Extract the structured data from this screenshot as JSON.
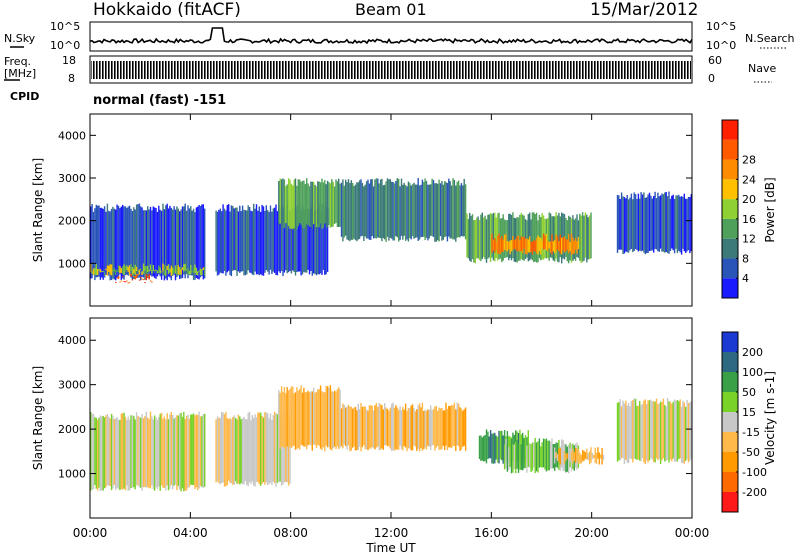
{
  "header": {
    "station": "Hokkaido (fitACF)",
    "beam": "Beam 01",
    "date": "15/Mar/2012"
  },
  "side_labels": {
    "nsky": "N.Sky",
    "nsearch": "N.Search",
    "freq_line1": "Freq.",
    "freq_line2": "[MHz]",
    "nave": "Nave",
    "cpid": "CPID",
    "cpid_value": "normal (fast) -151"
  },
  "noise_panel": {
    "left_ticks": [
      "10^5",
      "10^0"
    ],
    "right_ticks": [
      "10^5",
      "10^0"
    ]
  },
  "freq_panel": {
    "left_ticks": [
      "18",
      "8"
    ],
    "right_ticks": [
      "60",
      "0"
    ]
  },
  "x_axis": {
    "label": "Time UT",
    "ticks": [
      "00:00",
      "04:00",
      "08:00",
      "12:00",
      "16:00",
      "20:00",
      "00:00"
    ]
  },
  "colors": {
    "power": [
      "#1a1aff",
      "#2a55b8",
      "#3c7a7a",
      "#4fa05a",
      "#8fd032",
      "#ffc000",
      "#ff8c00",
      "#ff5a00",
      "#ff2000"
    ],
    "velocity": [
      "#ff1a1a",
      "#ff6a00",
      "#ff9a00",
      "#ffb84a",
      "#c8c8c8",
      "#78d228",
      "#3aa048",
      "#2d6a82",
      "#1a3ad2"
    ]
  },
  "chart_data": [
    {
      "type": "heatmap",
      "name": "power",
      "ylabel": "Slant Range [km]",
      "yticks": [
        "1000",
        "2000",
        "3000",
        "4000"
      ],
      "ylim": [
        0,
        4500
      ],
      "xlim_hours": [
        0,
        24
      ],
      "colorbar_label": "Power [dB]",
      "colorbar_ticks": [
        "4",
        "8",
        "12",
        "16",
        "20",
        "24",
        "28"
      ],
      "colorbar_range": [
        0,
        30
      ],
      "regions": [
        {
          "t": [
            0,
            4.6
          ],
          "r": [
            600,
            2400
          ],
          "v": 6
        },
        {
          "t": [
            0,
            4.6
          ],
          "r": [
            700,
            1000
          ],
          "v": 16
        },
        {
          "t": [
            1,
            2.5
          ],
          "r": [
            600,
            750
          ],
          "v": 24
        },
        {
          "t": [
            5,
            9.5
          ],
          "r": [
            700,
            2400
          ],
          "v": 6
        },
        {
          "t": [
            7.5,
            10
          ],
          "r": [
            1800,
            3000
          ],
          "v": 10
        },
        {
          "t": [
            10,
            15
          ],
          "r": [
            1500,
            3000
          ],
          "v": 7
        },
        {
          "t": [
            15,
            20
          ],
          "r": [
            1000,
            2200
          ],
          "v": 10
        },
        {
          "t": [
            16,
            19.5
          ],
          "r": [
            1200,
            1700
          ],
          "v": 20
        },
        {
          "t": [
            21,
            24
          ],
          "r": [
            1200,
            2700
          ],
          "v": 6
        }
      ]
    },
    {
      "type": "heatmap",
      "name": "velocity",
      "ylabel": "Slant Range [km]",
      "yticks": [
        "1000",
        "2000",
        "3000",
        "4000"
      ],
      "ylim": [
        0,
        4500
      ],
      "xlim_hours": [
        0,
        24
      ],
      "colorbar_label": "Velocity [m s-1]",
      "colorbar_ticks": [
        "-200",
        "-100",
        "-50",
        "-15",
        "15",
        "50",
        "100",
        "200"
      ],
      "colorbar_range": [
        -250,
        250
      ],
      "regions": [
        {
          "t": [
            0,
            4.6
          ],
          "r": [
            600,
            2400
          ],
          "v": -10
        },
        {
          "t": [
            5,
            8
          ],
          "r": [
            700,
            2400
          ],
          "v": -20
        },
        {
          "t": [
            7.5,
            10
          ],
          "r": [
            1500,
            3000
          ],
          "v": -55
        },
        {
          "t": [
            10,
            15
          ],
          "r": [
            1500,
            2600
          ],
          "v": -30
        },
        {
          "t": [
            15.5,
            17.5
          ],
          "r": [
            1200,
            2000
          ],
          "v": 120
        },
        {
          "t": [
            16.5,
            19.5
          ],
          "r": [
            1000,
            1800
          ],
          "v": 40
        },
        {
          "t": [
            18.5,
            20.5
          ],
          "r": [
            1200,
            1600
          ],
          "v": -70
        },
        {
          "t": [
            21,
            24
          ],
          "r": [
            1200,
            2700
          ],
          "v": -10
        }
      ]
    }
  ]
}
